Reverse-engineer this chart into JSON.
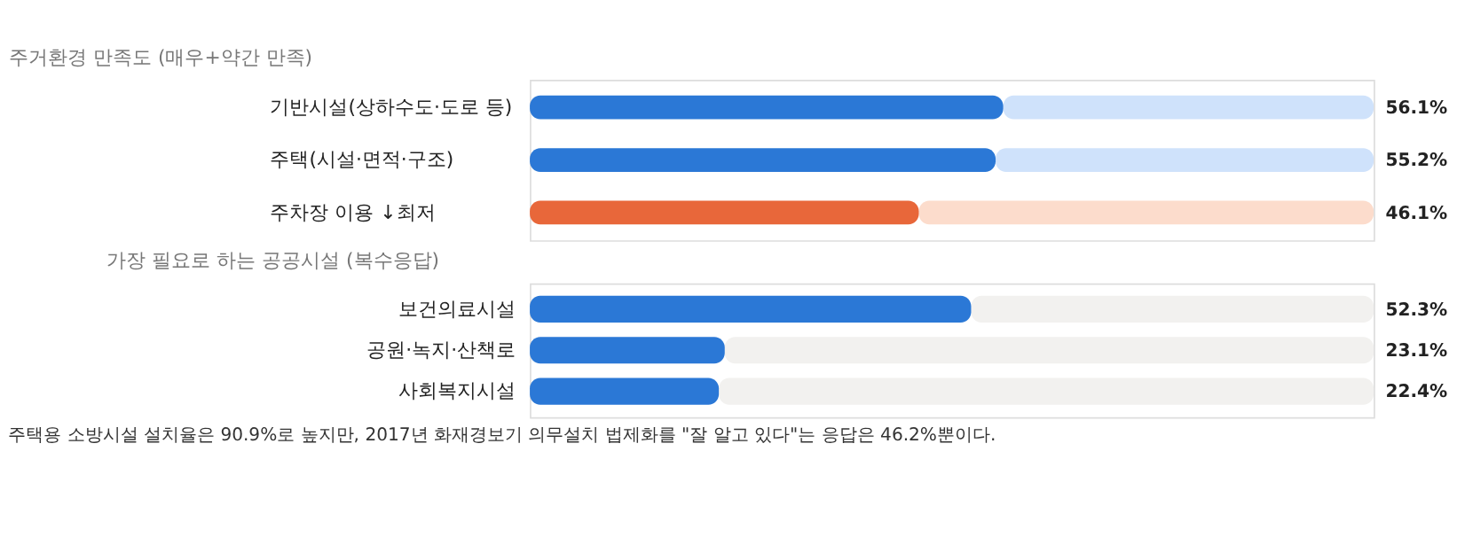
{
  "chart_data": [
    {
      "type": "bar",
      "orientation": "horizontal",
      "stacked": true,
      "title": "주거환경 만족도 (매우+약간 만족)",
      "categories": [
        "기반시설(상하수도·도로 등)",
        "주택(시설·면적·구조)",
        "주차장 이용 ↓최저"
      ],
      "xlim": [
        0,
        100
      ],
      "tick_labels": "y",
      "series": [
        {
          "values": [
            56.1,
            55.2,
            46.1
          ],
          "colors": [
            "#2b78d6",
            "#2b78d6",
            "#e8673a"
          ],
          "value_labels": [
            "56.1%",
            "55.2%",
            "46.1%"
          ]
        },
        {
          "values": [
            43.9,
            44.8,
            53.9
          ],
          "colors": [
            "#cfe2fb",
            "#cfe2fb",
            "#fcdccc"
          ]
        }
      ]
    },
    {
      "type": "bar",
      "orientation": "horizontal",
      "stacked": true,
      "title": "가장 필요로 하는 공공시설 (복수응답)",
      "categories": [
        "보건의료시설",
        "공원·녹지·산책로",
        "사회복지시설"
      ],
      "xlim": [
        0,
        100
      ],
      "tick_labels": "y",
      "series": [
        {
          "values": [
            52.3,
            23.1,
            22.4
          ],
          "colors": [
            "#2b78d6",
            "#2b78d6",
            "#2b78d6"
          ],
          "value_labels": [
            "52.3%",
            "23.1%",
            "22.4%"
          ]
        },
        {
          "values": [
            47.7,
            76.9,
            77.6
          ],
          "colors": [
            "#f2f1ef",
            "#f2f1ef",
            "#f2f1ef"
          ]
        }
      ],
      "annotations": [
        "주택용 소방시설 설치율은 90.9%로 높지만, 2017년 화재경보기 의무설치 법제화를 \"잘 알고 있다\"는 응답은 46.2%뿐이다."
      ]
    }
  ]
}
